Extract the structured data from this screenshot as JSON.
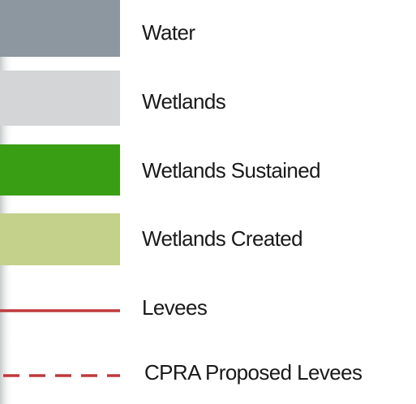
{
  "legend": {
    "items": [
      {
        "label": "Water",
        "kind": "fill",
        "color": "#8d979f"
      },
      {
        "label": "Wetlands",
        "kind": "fill",
        "color": "#d3d5d6"
      },
      {
        "label": "Wetlands Sustained",
        "kind": "fill",
        "color": "#3a9e14"
      },
      {
        "label": "Wetlands Created",
        "kind": "fill",
        "color": "#c3d18a"
      },
      {
        "label": "Levees",
        "kind": "line",
        "color": "#c0393b"
      },
      {
        "label": "CPRA Proposed Levees",
        "kind": "dashed",
        "color": "#c0393b"
      }
    ]
  }
}
